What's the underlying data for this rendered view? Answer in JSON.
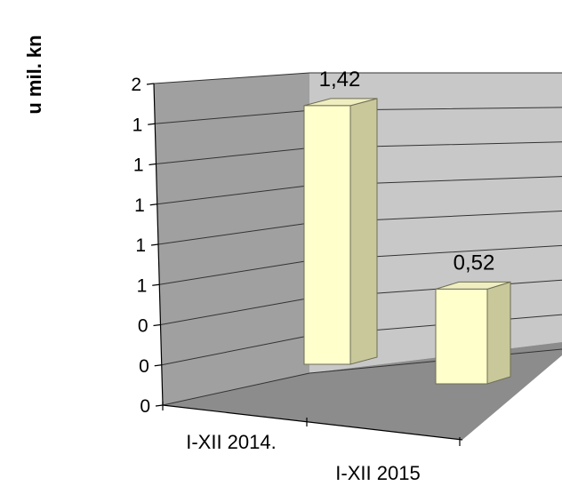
{
  "chart_data": {
    "type": "bar",
    "title": "",
    "xlabel": "",
    "ylabel": "u mil. kn",
    "categories": [
      "I-XII 2014.",
      "I-XII 2015"
    ],
    "values": [
      1.42,
      0.52
    ],
    "value_labels": [
      "1,42",
      "0,52"
    ],
    "ylim": [
      0,
      1.6
    ],
    "y_ticks": [
      0,
      0.2,
      0.4,
      0.6,
      0.8,
      1.0,
      1.2,
      1.4,
      1.6
    ],
    "y_tick_labels": [
      "0",
      "0",
      "0",
      "1",
      "1",
      "1",
      "1",
      "1",
      "2"
    ],
    "grid": true,
    "style": "3d-column",
    "colors": {
      "bar_front": "#ffffcc",
      "bar_side": "#c8c89a",
      "bar_top": "#eeeec0",
      "bar_edge": "#6e6e55",
      "back_wall": "#c8c8c8",
      "side_wall": "#a0a0a0",
      "floor": "#8c8c8c",
      "gridline": "#333333"
    }
  }
}
